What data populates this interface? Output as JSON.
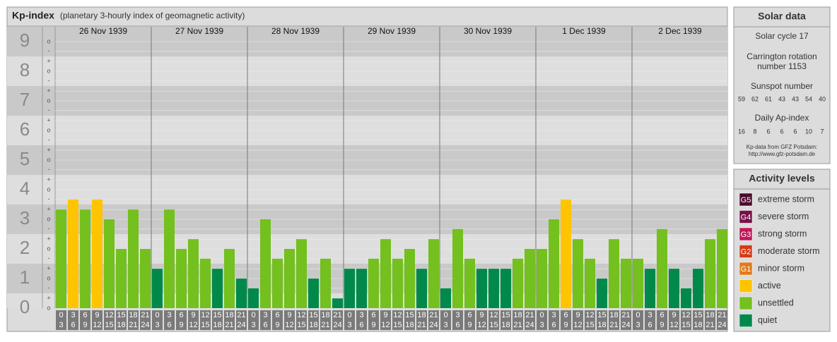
{
  "chart_data": {
    "type": "bar",
    "title": "Kp-index",
    "subtitle": "(planetary 3-hourly index of geomagnetic activity)",
    "ylim": [
      0,
      9.5
    ],
    "yticks": [
      0,
      1,
      2,
      3,
      4,
      5,
      6,
      7,
      8,
      9
    ],
    "minor_yticks": [
      {
        "value": 0,
        "label": "o"
      },
      {
        "value": 0.33,
        "label": "+"
      },
      {
        "value": 0.67,
        "label": "-"
      },
      {
        "value": 1,
        "label": "o"
      },
      {
        "value": 1.33,
        "label": "+"
      },
      {
        "value": 1.67,
        "label": "-"
      },
      {
        "value": 2,
        "label": "o"
      },
      {
        "value": 2.33,
        "label": "+"
      },
      {
        "value": 2.67,
        "label": "-"
      },
      {
        "value": 3,
        "label": "o"
      },
      {
        "value": 3.33,
        "label": "+"
      },
      {
        "value": 3.67,
        "label": "-"
      },
      {
        "value": 4,
        "label": "o"
      },
      {
        "value": 4.33,
        "label": "+"
      },
      {
        "value": 4.67,
        "label": "-"
      },
      {
        "value": 5,
        "label": "o"
      },
      {
        "value": 5.33,
        "label": "+"
      },
      {
        "value": 5.67,
        "label": "-"
      },
      {
        "value": 6,
        "label": "o"
      },
      {
        "value": 6.33,
        "label": "+"
      },
      {
        "value": 6.67,
        "label": "-"
      },
      {
        "value": 7,
        "label": "o"
      },
      {
        "value": 7.33,
        "label": "+"
      },
      {
        "value": 7.67,
        "label": "-"
      },
      {
        "value": 8,
        "label": "o"
      },
      {
        "value": 8.33,
        "label": "+"
      },
      {
        "value": 8.67,
        "label": "-"
      },
      {
        "value": 9,
        "label": "o"
      }
    ],
    "hours": [
      [
        0,
        3
      ],
      [
        3,
        6
      ],
      [
        6,
        9
      ],
      [
        9,
        12
      ],
      [
        12,
        15
      ],
      [
        15,
        18
      ],
      [
        18,
        21
      ],
      [
        21,
        24
      ]
    ],
    "series": [
      {
        "name": "26 Nov 1939",
        "values": [
          3.33,
          3.67,
          3.33,
          3.67,
          3,
          2,
          3.33,
          2
        ],
        "colors": [
          "#73c01e",
          "#ffc400",
          "#73c01e",
          "#ffc400",
          "#73c01e",
          "#73c01e",
          "#73c01e",
          "#73c01e"
        ]
      },
      {
        "name": "27 Nov 1939",
        "values": [
          1.33,
          3.33,
          2,
          2.33,
          1.67,
          1.33,
          2,
          1
        ],
        "colors": [
          "#00894a",
          "#73c01e",
          "#73c01e",
          "#73c01e",
          "#73c01e",
          "#00894a",
          "#73c01e",
          "#00894a"
        ]
      },
      {
        "name": "28 Nov 1939",
        "values": [
          0.67,
          3,
          1.67,
          2,
          2.33,
          1,
          1.67,
          0.33
        ],
        "colors": [
          "#00894a",
          "#73c01e",
          "#73c01e",
          "#73c01e",
          "#73c01e",
          "#00894a",
          "#73c01e",
          "#00894a"
        ]
      },
      {
        "name": "29 Nov 1939",
        "values": [
          1.33,
          1.33,
          1.67,
          2.33,
          1.67,
          2,
          1.33,
          2.33
        ],
        "colors": [
          "#00894a",
          "#00894a",
          "#73c01e",
          "#73c01e",
          "#73c01e",
          "#73c01e",
          "#00894a",
          "#73c01e"
        ]
      },
      {
        "name": "30 Nov 1939",
        "values": [
          0.67,
          2.67,
          1.67,
          1.33,
          1.33,
          1.33,
          1.67,
          2
        ],
        "colors": [
          "#00894a",
          "#73c01e",
          "#73c01e",
          "#00894a",
          "#00894a",
          "#00894a",
          "#73c01e",
          "#73c01e"
        ]
      },
      {
        "name": "1 Dec 1939",
        "values": [
          2,
          3,
          3.67,
          2.33,
          1.67,
          1,
          2.33,
          1.67
        ],
        "colors": [
          "#73c01e",
          "#73c01e",
          "#ffc400",
          "#73c01e",
          "#73c01e",
          "#00894a",
          "#73c01e",
          "#73c01e"
        ]
      },
      {
        "name": "2 Dec 1939",
        "values": [
          1.67,
          1.33,
          2.67,
          1.33,
          0.67,
          1.33,
          2.33,
          2.67
        ],
        "colors": [
          "#73c01e",
          "#00894a",
          "#73c01e",
          "#00894a",
          "#00894a",
          "#00894a",
          "#73c01e",
          "#73c01e"
        ]
      }
    ]
  },
  "solar_data": {
    "title": "Solar data",
    "cycle": "Solar cycle 17",
    "carrington": [
      "Carrington rotation",
      "number 1153"
    ],
    "sunspot_title": "Sunspot number",
    "sunspot": [
      59,
      62,
      61,
      43,
      43,
      54,
      40
    ],
    "ap_title": "Daily Ap-index",
    "ap": [
      16,
      8,
      6,
      6,
      6,
      10,
      7
    ],
    "source": [
      "Kp-data from GFZ Potsdam:",
      "http://www.gfz-potsdam.de"
    ]
  },
  "activity_levels": {
    "title": "Activity levels",
    "items": [
      {
        "badge": "G5",
        "name": "extreme storm",
        "color": "#4d0a2c"
      },
      {
        "badge": "G4",
        "name": "severe storm",
        "color": "#7a1048"
      },
      {
        "badge": "G3",
        "name": "strong storm",
        "color": "#c0185a"
      },
      {
        "badge": "G2",
        "name": "moderate storm",
        "color": "#d43a14"
      },
      {
        "badge": "G1",
        "name": "minor storm",
        "color": "#e07b1a"
      },
      {
        "name": "active",
        "color": "#ffc400"
      },
      {
        "name": "unsettled",
        "color": "#73c01e"
      },
      {
        "name": "quiet",
        "color": "#00894a"
      }
    ]
  }
}
